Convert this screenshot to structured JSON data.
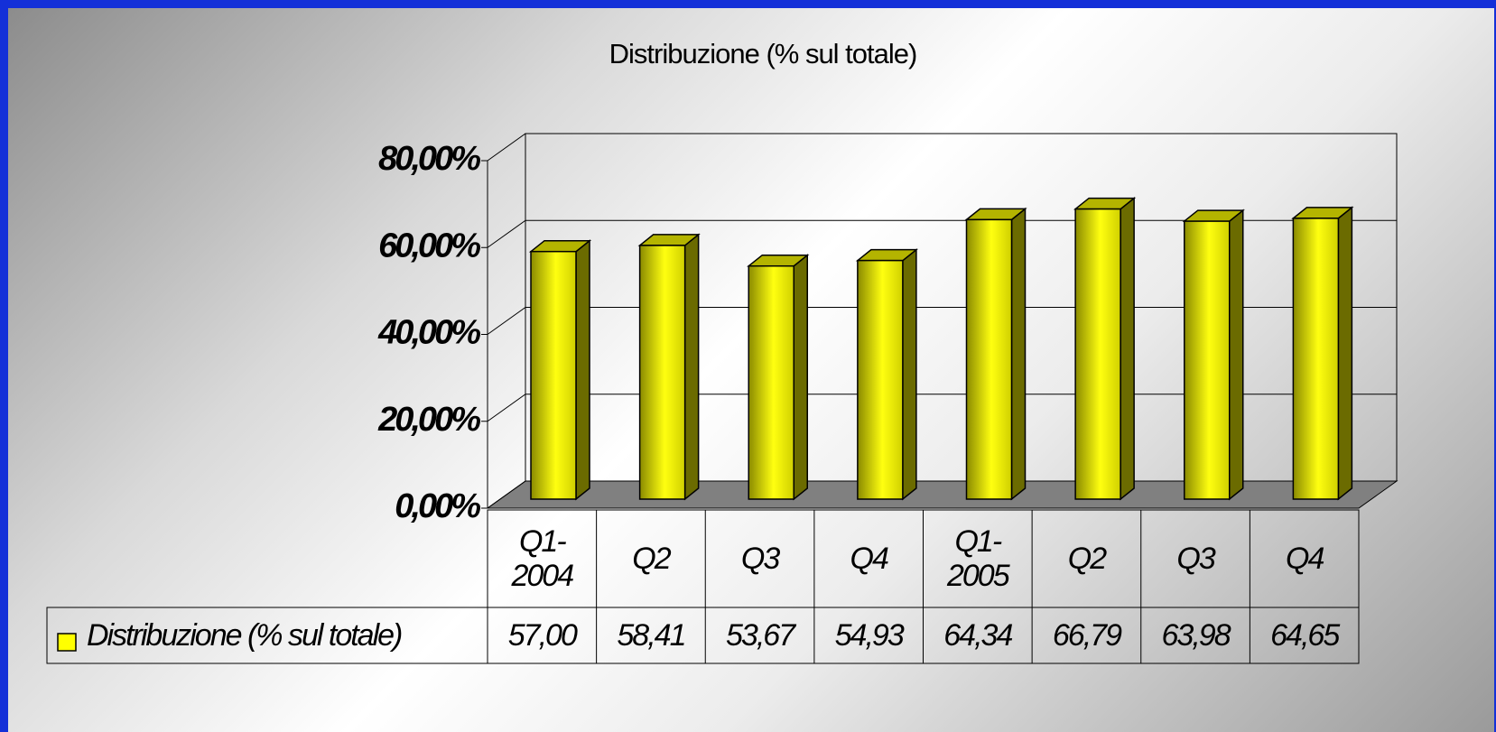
{
  "chart_data": {
    "type": "bar3d",
    "title": "Distribuzione (% sul totale)",
    "categories": [
      "Q1-2004",
      "Q2",
      "Q3",
      "Q4",
      "Q1-2005",
      "Q2",
      "Q3",
      "Q4"
    ],
    "series": [
      {
        "name": "Distribuzione (% sul totale)",
        "color": "#ffff00",
        "values": [
          57.0,
          58.41,
          53.67,
          54.93,
          64.34,
          66.79,
          63.98,
          64.65
        ],
        "value_labels": [
          "57,00",
          "58,41",
          "53,67",
          "54,93",
          "64,34",
          "66,79",
          "63,98",
          "64,65"
        ]
      }
    ],
    "ylim": [
      0,
      80
    ],
    "yticks": [
      {
        "value": 0,
        "label": "0,00%"
      },
      {
        "value": 20,
        "label": "20,00%"
      },
      {
        "value": 40,
        "label": "40,00%"
      },
      {
        "value": 60,
        "label": "60,00%"
      },
      {
        "value": 80,
        "label": "80,00%"
      }
    ],
    "grid": true,
    "data_table": true
  }
}
